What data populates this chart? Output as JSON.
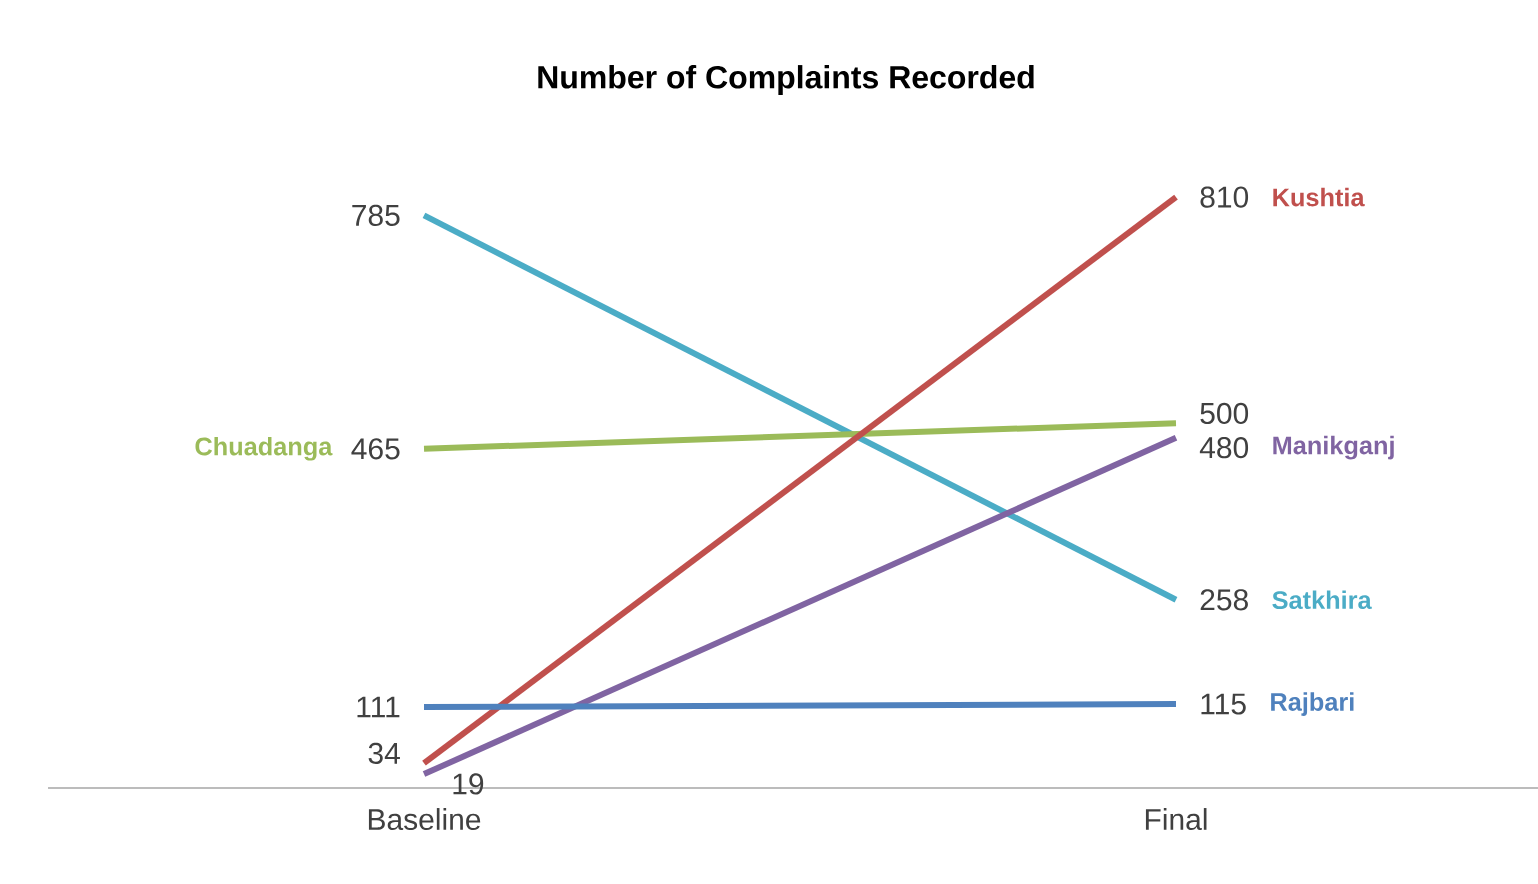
{
  "chart_data": {
    "type": "line",
    "title": "Number of Complaints Recorded",
    "categories": [
      "Baseline",
      "Final"
    ],
    "series": [
      {
        "name": "Satkhira",
        "color": "#4bacc6",
        "values": [
          785,
          258
        ]
      },
      {
        "name": "Chuadanga",
        "color": "#9bbb59",
        "values": [
          465,
          500
        ]
      },
      {
        "name": "Kushtia",
        "color": "#c0504d",
        "values": [
          34,
          810
        ]
      },
      {
        "name": "Manikganj",
        "color": "#8064a2",
        "values": [
          19,
          480
        ]
      },
      {
        "name": "Rajbari",
        "color": "#4f81bd",
        "values": [
          111,
          115
        ]
      }
    ],
    "data_labels": true
  }
}
